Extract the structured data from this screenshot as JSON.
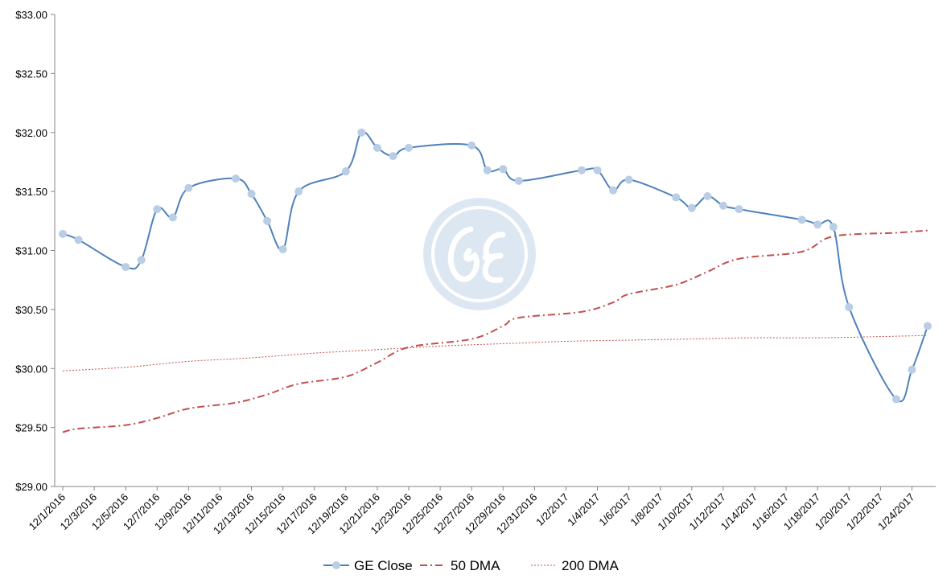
{
  "chart_data": {
    "type": "line",
    "x_start": "12/1/2016",
    "xlim": [
      "12/1/2016",
      "1/25/2017"
    ],
    "ylim": [
      29.0,
      33.0
    ],
    "y_step": 0.5,
    "y_tick_labels": [
      "$29.00",
      "$29.50",
      "$30.00",
      "$30.50",
      "$31.00",
      "$31.50",
      "$32.00",
      "$32.50",
      "$33.00"
    ],
    "x_tick_labels": [
      "12/1/2016",
      "12/3/2016",
      "12/5/2016",
      "12/7/2016",
      "12/9/2016",
      "12/11/2016",
      "12/13/2016",
      "12/15/2016",
      "12/17/2016",
      "12/19/2016",
      "12/21/2016",
      "12/23/2016",
      "12/25/2016",
      "12/27/2016",
      "12/29/2016",
      "12/31/2016",
      "1/2/2017",
      "1/4/2017",
      "1/6/2017",
      "1/8/2017",
      "1/10/2017",
      "1/12/2017",
      "1/14/2017",
      "1/16/2017",
      "1/18/2017",
      "1/20/2017",
      "1/22/2017",
      "1/24/2017"
    ],
    "grid": false,
    "legend_position": "bottom",
    "series": [
      {
        "name": "GE Close",
        "color": "#4f81bd",
        "marker_color": "#b9cde5",
        "style": "line-markers",
        "points": [
          [
            "12/1/2016",
            31.14
          ],
          [
            "12/2/2016",
            31.09
          ],
          [
            "12/5/2016",
            30.86
          ],
          [
            "12/6/2016",
            30.92
          ],
          [
            "12/7/2016",
            31.35
          ],
          [
            "12/8/2016",
            31.28
          ],
          [
            "12/9/2016",
            31.53
          ],
          [
            "12/12/2016",
            31.61
          ],
          [
            "12/13/2016",
            31.48
          ],
          [
            "12/14/2016",
            31.25
          ],
          [
            "12/15/2016",
            31.01
          ],
          [
            "12/16/2016",
            31.5
          ],
          [
            "12/19/2016",
            31.67
          ],
          [
            "12/20/2016",
            32.0
          ],
          [
            "12/21/2016",
            31.87
          ],
          [
            "12/22/2016",
            31.8
          ],
          [
            "12/23/2016",
            31.87
          ],
          [
            "12/27/2016",
            31.89
          ],
          [
            "12/28/2016",
            31.68
          ],
          [
            "12/29/2016",
            31.69
          ],
          [
            "12/30/2016",
            31.59
          ],
          [
            "1/3/2017",
            31.68
          ],
          [
            "1/4/2017",
            31.68
          ],
          [
            "1/5/2017",
            31.51
          ],
          [
            "1/6/2017",
            31.6
          ],
          [
            "1/9/2017",
            31.45
          ],
          [
            "1/10/2017",
            31.36
          ],
          [
            "1/11/2017",
            31.46
          ],
          [
            "1/12/2017",
            31.38
          ],
          [
            "1/13/2017",
            31.35
          ],
          [
            "1/17/2017",
            31.26
          ],
          [
            "1/18/2017",
            31.22
          ],
          [
            "1/19/2017",
            31.2
          ],
          [
            "1/20/2017",
            30.52
          ],
          [
            "1/23/2017",
            29.74
          ],
          [
            "1/24/2017",
            29.99
          ],
          [
            "1/25/2017",
            30.36
          ]
        ]
      },
      {
        "name": "50 DMA",
        "color": "#c0504d",
        "style": "dash-dot",
        "points": [
          [
            "12/1/2016",
            29.46
          ],
          [
            "12/2/2016",
            29.49
          ],
          [
            "12/5/2016",
            29.52
          ],
          [
            "12/7/2016",
            29.58
          ],
          [
            "12/9/2016",
            29.66
          ],
          [
            "12/12/2016",
            29.71
          ],
          [
            "12/14/2016",
            29.78
          ],
          [
            "12/16/2016",
            29.87
          ],
          [
            "12/19/2016",
            29.93
          ],
          [
            "12/21/2016",
            30.05
          ],
          [
            "12/23/2016",
            30.18
          ],
          [
            "12/27/2016",
            30.25
          ],
          [
            "12/29/2016",
            30.36
          ],
          [
            "12/30/2016",
            30.43
          ],
          [
            "1/3/2017",
            30.48
          ],
          [
            "1/5/2017",
            30.56
          ],
          [
            "1/6/2017",
            30.63
          ],
          [
            "1/9/2017",
            30.71
          ],
          [
            "1/11/2017",
            30.82
          ],
          [
            "1/13/2017",
            30.93
          ],
          [
            "1/17/2017",
            30.99
          ],
          [
            "1/19/2017",
            31.12
          ],
          [
            "1/23/2017",
            31.15
          ],
          [
            "1/25/2017",
            31.17
          ]
        ]
      },
      {
        "name": "200 DMA",
        "color": "#c0504d",
        "style": "dotted",
        "points": [
          [
            "12/1/2016",
            29.98
          ],
          [
            "12/5/2016",
            30.01
          ],
          [
            "12/9/2016",
            30.06
          ],
          [
            "12/13/2016",
            30.09
          ],
          [
            "12/17/2016",
            30.13
          ],
          [
            "12/21/2016",
            30.16
          ],
          [
            "12/25/2016",
            30.19
          ],
          [
            "12/29/2016",
            30.21
          ],
          [
            "1/2/2017",
            30.23
          ],
          [
            "1/6/2017",
            30.24
          ],
          [
            "1/10/2017",
            30.25
          ],
          [
            "1/14/2017",
            30.26
          ],
          [
            "1/18/2017",
            30.26
          ],
          [
            "1/22/2017",
            30.27
          ],
          [
            "1/25/2017",
            30.28
          ]
        ]
      }
    ]
  },
  "watermark": {
    "name": "ge-logo",
    "color": "#dde7f2"
  }
}
